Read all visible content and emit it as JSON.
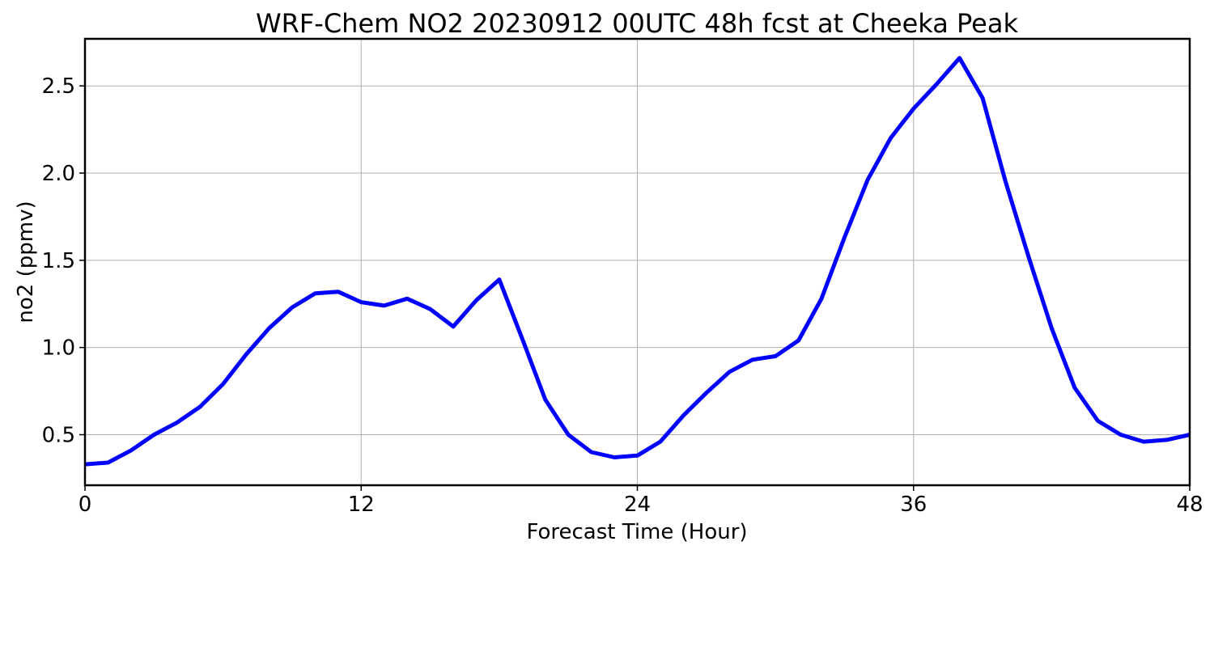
{
  "chart_data": {
    "type": "line",
    "title": "WRF-Chem NO2  20230912 00UTC 48h fcst at Cheeka Peak",
    "xlabel": "Forecast Time (Hour)",
    "ylabel": "no2  (ppmv)",
    "xlim": [
      0,
      48
    ],
    "ylim": [
      0.21,
      2.77
    ],
    "x_ticks": [
      0,
      12,
      24,
      36,
      48
    ],
    "y_ticks": [
      0.5,
      1.0,
      1.5,
      2.0,
      2.5
    ],
    "x_tick_labels": [
      "0",
      "12",
      "24",
      "36",
      "48"
    ],
    "y_tick_labels": [
      "0.5",
      "1.0",
      "1.5",
      "2.0",
      "2.5"
    ],
    "grid": true,
    "line_color": "#0000ff",
    "series": [
      {
        "x": [
          0,
          1,
          2,
          3,
          4,
          5,
          6,
          7,
          8,
          9,
          10,
          11,
          12,
          13,
          14,
          15,
          16,
          17,
          18,
          19,
          20,
          21,
          22,
          23,
          24,
          25,
          26,
          27,
          28,
          29,
          30,
          31,
          32,
          33,
          34,
          35,
          36,
          37,
          38,
          39,
          40,
          41,
          42,
          43,
          44,
          45,
          46,
          47,
          48
        ],
        "values": [
          0.33,
          0.34,
          0.41,
          0.5,
          0.57,
          0.66,
          0.79,
          0.96,
          1.11,
          1.23,
          1.31,
          1.32,
          1.26,
          1.24,
          1.28,
          1.22,
          1.12,
          1.27,
          1.39,
          1.05,
          0.7,
          0.5,
          0.4,
          0.37,
          0.38,
          0.46,
          0.61,
          0.74,
          0.86,
          0.93,
          0.95,
          1.04,
          1.28,
          1.63,
          1.96,
          2.2,
          2.37,
          2.51,
          2.66,
          2.43,
          1.95,
          1.52,
          1.11,
          0.77,
          0.58,
          0.5,
          0.46,
          0.47,
          0.5
        ]
      }
    ]
  }
}
